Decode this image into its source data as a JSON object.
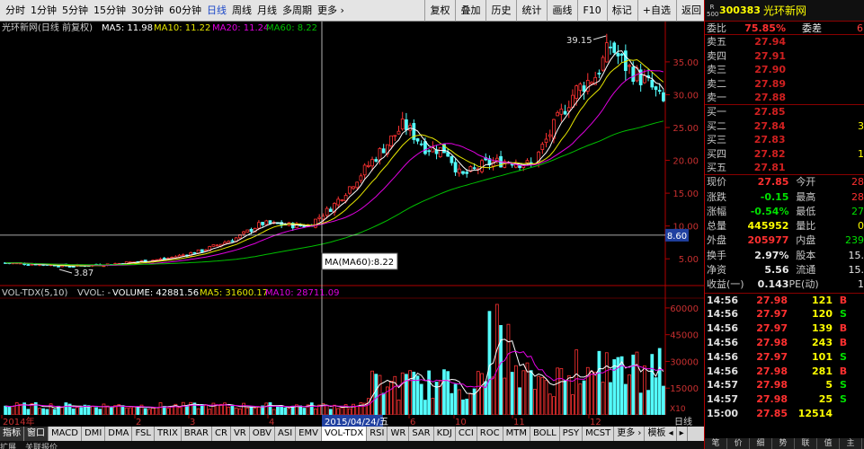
{
  "toolbar": {
    "periods": [
      "分时",
      "1分钟",
      "5分钟",
      "15分钟",
      "30分钟",
      "60分钟",
      "日线",
      "周线",
      "月线",
      "多周期",
      "更多 ›"
    ],
    "active_period": "日线",
    "actions": [
      "复权",
      "叠加",
      "历史",
      "统计",
      "画线",
      "F10",
      "标记",
      "+自选",
      "返回"
    ]
  },
  "chart": {
    "legend": {
      "title": "光环新网(日线 前复权)",
      "ma5": "MA5: 11.98",
      "ma10": "MA10: 11.22",
      "ma20": "MA20: 11.24",
      "ma60": "MA60: 8.22"
    },
    "ma_colors": {
      "ma5": "#ffffff",
      "ma10": "#e6e600",
      "ma20": "#e000e0",
      "ma60": "#00c000"
    },
    "price_ticks": [
      "35.00",
      "30.00",
      "25.00",
      "20.00",
      "15.00",
      "10.00",
      "5.00"
    ],
    "price_tick_values": [
      35,
      30,
      25,
      20,
      15,
      10,
      5
    ],
    "price_range": [
      1.2,
      39.5
    ],
    "cursor_price": "8.60",
    "cursor_value": 8.6,
    "max_label": "39.15",
    "min_label": "3.87",
    "tooltip": "MA(MA60):8.22",
    "volume_legend": {
      "name": "VOL-TDX(5,10)",
      "vvol": "VVOL: -",
      "volume": "VOLUME: 42881.56",
      "ma5": "MA5: 31600.17",
      "ma10": "MA10: 28711.09"
    },
    "volume_ticks": [
      "60000",
      "45000",
      "30000",
      "15000"
    ],
    "volume_tick_values": [
      60000,
      45000,
      30000,
      15000
    ],
    "volume_max": 66000,
    "volume_unit": "X10",
    "date_labels": [
      "2014年",
      "2",
      "3",
      "4",
      "6",
      "10",
      "11",
      "12"
    ],
    "cursor_date": "2015/04/24/五",
    "period_label": "日线"
  },
  "bottom_tabs": [
    "指标",
    "窗口",
    "MACD",
    "DMI",
    "DMA",
    "FSL",
    "TRIX",
    "BRAR",
    "CR",
    "VR",
    "OBV",
    "ASI",
    "EMV",
    "VOL-TDX",
    "RSI",
    "WR",
    "SAR",
    "KDJ",
    "CCI",
    "ROC",
    "MTM",
    "BOLL",
    "PSY",
    "MCST",
    "更多 ›",
    "模板 ◂",
    "▸"
  ],
  "active_tab": "VOL-TDX",
  "bottom_extras": [
    "扩展",
    "关联报价"
  ],
  "quote": {
    "badge": "R 500",
    "code": "300383",
    "name": "光环新网",
    "weibi_label": "委比",
    "weibi": "75.85%",
    "weicha_label": "委差",
    "weicha": "6",
    "asks": [
      {
        "label": "卖五",
        "price": "27.94"
      },
      {
        "label": "卖四",
        "price": "27.91"
      },
      {
        "label": "卖三",
        "price": "27.90"
      },
      {
        "label": "卖二",
        "price": "27.89"
      },
      {
        "label": "卖一",
        "price": "27.88"
      }
    ],
    "bids": [
      {
        "label": "买一",
        "price": "27.85",
        "vol": ""
      },
      {
        "label": "买二",
        "price": "27.84",
        "vol": "3"
      },
      {
        "label": "买三",
        "price": "27.83",
        "vol": ""
      },
      {
        "label": "买四",
        "price": "27.82",
        "vol": "1"
      },
      {
        "label": "买五",
        "price": "27.81",
        "vol": ""
      }
    ],
    "stats": [
      {
        "l1": "现价",
        "v1": "27.85",
        "c1": "red",
        "l2": "今开",
        "v2": "28",
        "c2": "red"
      },
      {
        "l1": "涨跌",
        "v1": "-0.15",
        "c1": "green",
        "l2": "最高",
        "v2": "28",
        "c2": "red"
      },
      {
        "l1": "涨幅",
        "v1": "-0.54%",
        "c1": "green",
        "l2": "最低",
        "v2": "27",
        "c2": "green"
      },
      {
        "l1": "总量",
        "v1": "445952",
        "c1": "yellow",
        "l2": "量比",
        "v2": "0",
        "c2": "yellow"
      },
      {
        "l1": "外盘",
        "v1": "205977",
        "c1": "red",
        "l2": "内盘",
        "v2": "239",
        "c2": "green"
      },
      {
        "l1": "换手",
        "v1": "2.97%",
        "c1": "white",
        "l2": "股本",
        "v2": "15.",
        "c2": "white"
      },
      {
        "l1": "净资",
        "v1": "5.56",
        "c1": "white",
        "l2": "流通",
        "v2": "15.",
        "c2": "white"
      },
      {
        "l1": "收益(一)",
        "v1": "0.143",
        "c1": "white",
        "l2": "PE(动)",
        "v2": "1",
        "c2": "white"
      }
    ],
    "ticks": [
      {
        "time": "14:56",
        "price": "27.98",
        "vol": "121",
        "side": "B"
      },
      {
        "time": "14:56",
        "price": "27.97",
        "vol": "120",
        "side": "S"
      },
      {
        "time": "14:56",
        "price": "27.97",
        "vol": "139",
        "side": "B"
      },
      {
        "time": "14:56",
        "price": "27.98",
        "vol": "243",
        "side": "B"
      },
      {
        "time": "14:56",
        "price": "27.97",
        "vol": "101",
        "side": "S"
      },
      {
        "time": "14:56",
        "price": "27.98",
        "vol": "281",
        "side": "B"
      },
      {
        "time": "14:57",
        "price": "27.98",
        "vol": "5",
        "side": "S"
      },
      {
        "time": "14:57",
        "price": "27.98",
        "vol": "25",
        "side": "S"
      },
      {
        "time": "15:00",
        "price": "27.85",
        "vol": "12514",
        "side": ""
      }
    ],
    "bottom_tabs": [
      "笔",
      "价",
      "细",
      "势",
      "联",
      "值",
      "主"
    ]
  }
}
